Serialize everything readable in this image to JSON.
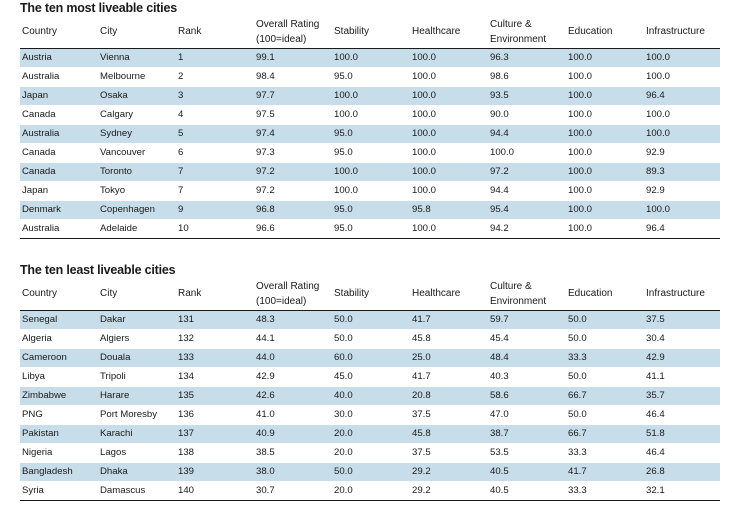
{
  "top_table": {
    "title": "The ten most liveable cities",
    "headers": {
      "country": "Country",
      "city": "City",
      "rank": "Rank",
      "rating_line1": "Overall Rating",
      "rating_line2": "(100=ideal)",
      "stability": "Stability",
      "healthcare": "Healthcare",
      "culture_line1": "Culture &",
      "culture_line2": "Environment",
      "education": "Education",
      "infrastructure": "Infrastructure"
    },
    "rows": [
      {
        "country": "Austria",
        "city": "Vienna",
        "rank": "1",
        "rating": "99.1",
        "stability": "100.0",
        "healthcare": "100.0",
        "culture": "96.3",
        "education": "100.0",
        "infrastructure": "100.0"
      },
      {
        "country": "Australia",
        "city": "Melbourne",
        "rank": "2",
        "rating": "98.4",
        "stability": "95.0",
        "healthcare": "100.0",
        "culture": "98.6",
        "education": "100.0",
        "infrastructure": "100.0"
      },
      {
        "country": "Japan",
        "city": "Osaka",
        "rank": "3",
        "rating": "97.7",
        "stability": "100.0",
        "healthcare": "100.0",
        "culture": "93.5",
        "education": "100.0",
        "infrastructure": "96.4"
      },
      {
        "country": "Canada",
        "city": "Calgary",
        "rank": "4",
        "rating": "97.5",
        "stability": "100.0",
        "healthcare": "100.0",
        "culture": "90.0",
        "education": "100.0",
        "infrastructure": "100.0"
      },
      {
        "country": "Australia",
        "city": "Sydney",
        "rank": "5",
        "rating": "97.4",
        "stability": "95.0",
        "healthcare": "100.0",
        "culture": "94.4",
        "education": "100.0",
        "infrastructure": "100.0"
      },
      {
        "country": "Canada",
        "city": "Vancouver",
        "rank": "6",
        "rating": "97.3",
        "stability": "95.0",
        "healthcare": "100.0",
        "culture": "100.0",
        "education": "100.0",
        "infrastructure": "92.9"
      },
      {
        "country": "Canada",
        "city": "Toronto",
        "rank": "7",
        "rating": "97.2",
        "stability": "100.0",
        "healthcare": "100.0",
        "culture": "97.2",
        "education": "100.0",
        "infrastructure": "89.3"
      },
      {
        "country": "Japan",
        "city": "Tokyo",
        "rank": "7",
        "rating": "97.2",
        "stability": "100.0",
        "healthcare": "100.0",
        "culture": "94.4",
        "education": "100.0",
        "infrastructure": "92.9"
      },
      {
        "country": "Denmark",
        "city": "Copenhagen",
        "rank": "9",
        "rating": "96.8",
        "stability": "95.0",
        "healthcare": "95.8",
        "culture": "95.4",
        "education": "100.0",
        "infrastructure": "100.0"
      },
      {
        "country": "Australia",
        "city": "Adelaide",
        "rank": "10",
        "rating": "96.6",
        "stability": "95.0",
        "healthcare": "100.0",
        "culture": "94.2",
        "education": "100.0",
        "infrastructure": "96.4"
      }
    ]
  },
  "bottom_table": {
    "title": "The ten least liveable cities",
    "headers": {
      "country": "Country",
      "city": "City",
      "rank": "Rank",
      "rating_line1": "Overall Rating",
      "rating_line2": "(100=ideal)",
      "stability": "Stability",
      "healthcare": "Healthcare",
      "culture_line1": "Culture &",
      "culture_line2": "Environment",
      "education": "Education",
      "infrastructure": "Infrastructure"
    },
    "rows": [
      {
        "country": "Senegal",
        "city": "Dakar",
        "rank": "131",
        "rating": "48.3",
        "stability": "50.0",
        "healthcare": "41.7",
        "culture": "59.7",
        "education": "50.0",
        "infrastructure": "37.5"
      },
      {
        "country": "Algeria",
        "city": "Algiers",
        "rank": "132",
        "rating": "44.1",
        "stability": "50.0",
        "healthcare": "45.8",
        "culture": "45.4",
        "education": "50.0",
        "infrastructure": "30.4"
      },
      {
        "country": "Cameroon",
        "city": "Douala",
        "rank": "133",
        "rating": "44.0",
        "stability": "60.0",
        "healthcare": "25.0",
        "culture": "48.4",
        "education": "33.3",
        "infrastructure": "42.9"
      },
      {
        "country": "Libya",
        "city": "Tripoli",
        "rank": "134",
        "rating": "42.9",
        "stability": "45.0",
        "healthcare": "41.7",
        "culture": "40.3",
        "education": "50.0",
        "infrastructure": "41.1"
      },
      {
        "country": "Zimbabwe",
        "city": "Harare",
        "rank": "135",
        "rating": "42.6",
        "stability": "40.0",
        "healthcare": "20.8",
        "culture": "58.6",
        "education": "66.7",
        "infrastructure": "35.7"
      },
      {
        "country": "PNG",
        "city": "Port Moresby",
        "rank": "136",
        "rating": "41.0",
        "stability": "30.0",
        "healthcare": "37.5",
        "culture": "47.0",
        "education": "50.0",
        "infrastructure": "46.4"
      },
      {
        "country": "Pakistan",
        "city": "Karachi",
        "rank": "137",
        "rating": "40.9",
        "stability": "20.0",
        "healthcare": "45.8",
        "culture": "38.7",
        "education": "66.7",
        "infrastructure": "51.8"
      },
      {
        "country": "Nigeria",
        "city": "Lagos",
        "rank": "138",
        "rating": "38.5",
        "stability": "20.0",
        "healthcare": "37.5",
        "culture": "53.5",
        "education": "33.3",
        "infrastructure": "46.4"
      },
      {
        "country": "Bangladesh",
        "city": "Dhaka",
        "rank": "139",
        "rating": "38.0",
        "stability": "50.0",
        "healthcare": "29.2",
        "culture": "40.5",
        "education": "41.7",
        "infrastructure": "26.8"
      },
      {
        "country": "Syria",
        "city": "Damascus",
        "rank": "140",
        "rating": "30.7",
        "stability": "20.0",
        "healthcare": "29.2",
        "culture": "40.5",
        "education": "33.3",
        "infrastructure": "32.1"
      }
    ]
  },
  "colors": {
    "stripe": "#c7dde9",
    "text": "#1a1a1a",
    "rule": "#1a1a1a"
  }
}
